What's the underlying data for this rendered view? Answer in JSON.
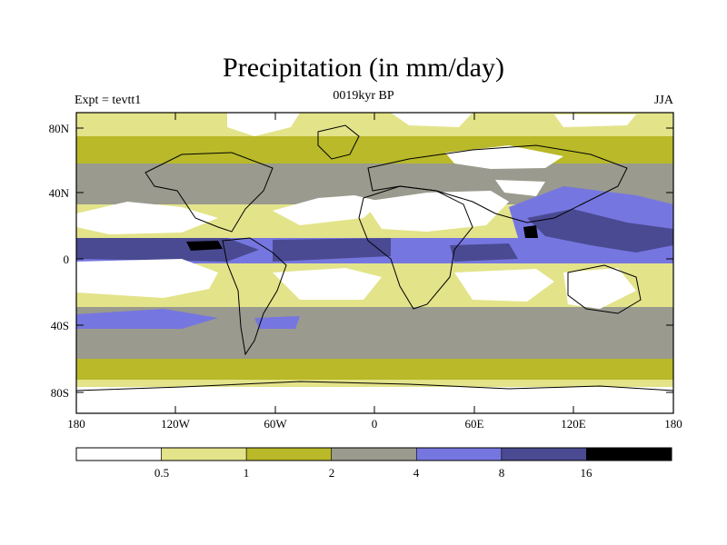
{
  "title": "Precipitation (in mm/day)",
  "experiment_label": "Expt = tevtt1",
  "period_label": "0019kyr BP",
  "season_label": "JJA",
  "lat_ticks": [
    "80N",
    "40N",
    "0",
    "40S",
    "80S"
  ],
  "lon_ticks": [
    "180",
    "120W",
    "60W",
    "0",
    "60E",
    "120E",
    "180"
  ],
  "colorbar": {
    "colors": [
      "#ffffff",
      "#e3e38a",
      "#b9b92a",
      "#9a9a8e",
      "#7676e0",
      "#4a4a92",
      "#000000"
    ],
    "labels": [
      "0.5",
      "1",
      "2",
      "4",
      "8",
      "16"
    ]
  },
  "regions": {
    "dry_midlat": [
      "#ffffff"
    ],
    "band_colors": {
      "polar": "#e3e38a",
      "storm": "#b9b92a",
      "ocean": "#9a9a8e",
      "wet": "#7676e0",
      "very_wet": "#4a4a92",
      "max": "#000000"
    }
  }
}
